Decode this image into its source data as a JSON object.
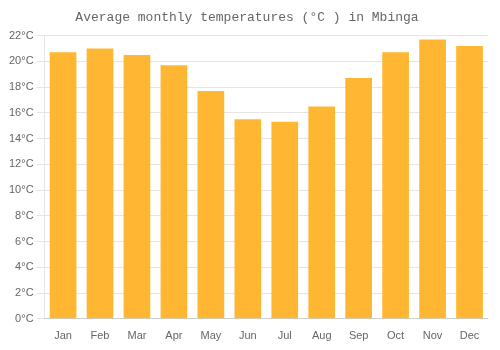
{
  "chart_data": {
    "type": "bar",
    "title": "Average monthly temperatures (°C ) in Mbinga",
    "categories": [
      "Jan",
      "Feb",
      "Mar",
      "Apr",
      "May",
      "Jun",
      "Jul",
      "Aug",
      "Sep",
      "Oct",
      "Nov",
      "Dec"
    ],
    "values": [
      20.7,
      21.0,
      20.5,
      19.7,
      17.7,
      15.5,
      15.3,
      16.5,
      18.7,
      20.7,
      21.7,
      21.2
    ],
    "color": "#FFB733",
    "ylim": [
      0,
      22
    ],
    "yticks": [
      {
        "value": 0,
        "label": "0°C"
      },
      {
        "value": 2,
        "label": "2°C"
      },
      {
        "value": 4,
        "label": "4°C"
      },
      {
        "value": 6,
        "label": "6°C"
      },
      {
        "value": 8,
        "label": "8°C"
      },
      {
        "value": 10,
        "label": "10°C"
      },
      {
        "value": 12,
        "label": "12°C"
      },
      {
        "value": 14,
        "label": "14°C"
      },
      {
        "value": 16,
        "label": "16°C"
      },
      {
        "value": 18,
        "label": "18°C"
      },
      {
        "value": 20,
        "label": "20°C"
      },
      {
        "value": 22,
        "label": "22°C"
      }
    ],
    "grid": true
  }
}
